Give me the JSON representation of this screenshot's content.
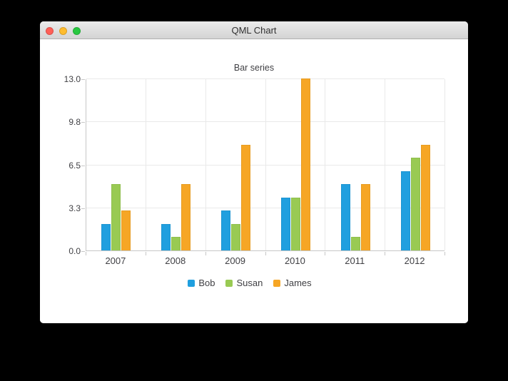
{
  "window": {
    "title": "QML Chart",
    "traffic_lights": [
      {
        "name": "close-button",
        "color": "#ff5f57"
      },
      {
        "name": "minimize-button",
        "color": "#febc2e"
      },
      {
        "name": "zoom-button",
        "color": "#28c840"
      }
    ]
  },
  "chart_data": {
    "type": "bar",
    "title": "Bar series",
    "categories": [
      "2007",
      "2008",
      "2009",
      "2010",
      "2011",
      "2012"
    ],
    "series": [
      {
        "name": "Bob",
        "color": "#209fdf",
        "values": [
          2,
          2,
          3,
          4,
          5,
          6
        ]
      },
      {
        "name": "Susan",
        "color": "#99ca53",
        "values": [
          5,
          1,
          2,
          4,
          1,
          7
        ]
      },
      {
        "name": "James",
        "color": "#f6a625",
        "values": [
          3,
          5,
          8,
          13,
          5,
          8
        ]
      }
    ],
    "xlabel": "",
    "ylabel": "",
    "ylim": [
      0,
      13
    ],
    "yticks": [
      {
        "label": "0.0",
        "value": 0
      },
      {
        "label": "3.3",
        "value": 3.25
      },
      {
        "label": "6.5",
        "value": 6.5
      },
      {
        "label": "9.8",
        "value": 9.75
      },
      {
        "label": "13.0",
        "value": 13
      }
    ],
    "grid": true,
    "legend_position": "bottom"
  }
}
